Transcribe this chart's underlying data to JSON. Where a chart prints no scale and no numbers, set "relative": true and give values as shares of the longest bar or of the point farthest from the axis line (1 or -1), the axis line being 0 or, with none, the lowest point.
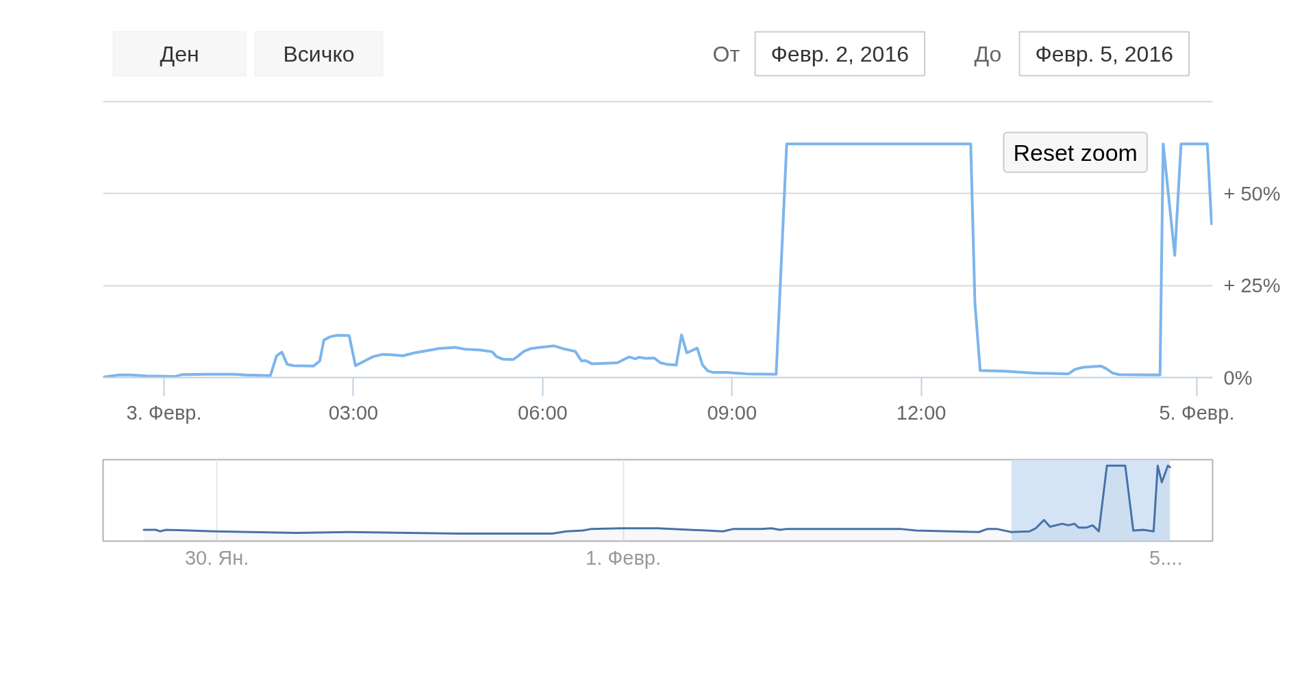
{
  "chart_data": [
    {
      "type": "line",
      "annotations": [
        "Ден",
        "Всичко",
        "От",
        "Февр. 2, 2016",
        "До",
        "Февр. 5, 2016",
        "Reset zoom"
      ],
      "x": [
        "2016-02-02T23:02",
        "2016-02-02T23:17",
        "2016-02-02T23:29",
        "2016-02-02T23:43",
        "2016-02-03T00:11",
        "2016-02-03T00:17",
        "2016-02-03T00:41",
        "2016-02-03T01:06",
        "2016-02-03T01:18",
        "2016-02-03T01:41",
        "2016-02-03T01:47",
        "2016-02-03T01:52",
        "2016-02-03T01:57",
        "2016-02-03T02:03",
        "2016-02-03T02:22",
        "2016-02-03T02:28",
        "2016-02-03T02:32",
        "2016-02-03T02:38",
        "2016-02-03T02:45",
        "2016-02-03T02:56",
        "2016-02-03T03:02",
        "2016-02-03T03:12",
        "2016-02-03T03:19",
        "2016-02-03T03:28",
        "2016-02-03T03:36",
        "2016-02-03T03:47",
        "2016-02-03T03:58",
        "2016-02-03T04:22",
        "2016-02-03T04:37",
        "2016-02-03T04:46",
        "2016-02-03T05:00",
        "2016-02-03T05:12",
        "2016-02-03T05:16",
        "2016-02-03T05:22",
        "2016-02-03T05:32",
        "2016-02-03T05:36",
        "2016-02-03T05:42",
        "2016-02-03T05:48",
        "2016-02-03T05:57",
        "2016-02-03T06:11",
        "2016-02-03T06:20",
        "2016-02-03T06:31",
        "2016-02-03T06:37",
        "2016-02-03T06:41",
        "2016-02-03T06:47",
        "2016-02-03T07:11",
        "2016-02-03T07:22",
        "2016-02-03T07:28",
        "2016-02-03T07:32",
        "2016-02-03T07:38",
        "2016-02-03T07:46",
        "2016-02-03T07:52",
        "2016-02-03T07:58",
        "2016-02-03T08:07",
        "2016-02-03T08:12",
        "2016-02-03T08:17",
        "2016-02-03T08:27",
        "2016-02-03T08:32",
        "2016-02-03T08:37",
        "2016-02-03T08:42",
        "2016-02-03T08:54",
        "2016-02-03T09:03",
        "2016-02-03T09:14",
        "2016-02-03T09:42",
        "2016-02-03T09:46",
        "2016-02-03T09:52",
        "2016-02-03T12:47",
        "2016-02-03T12:51",
        "2016-02-03T12:56",
        "2016-02-03T13:19",
        "2016-02-03T13:47",
        "2016-02-03T14:20",
        "2016-02-03T14:26",
        "2016-02-03T14:34",
        "2016-02-03T14:51",
        "2016-02-03T14:56",
        "2016-02-03T15:02",
        "2016-02-03T15:08",
        "2016-02-03T15:47",
        "2016-02-03T15:50",
        "2016-02-03T16:01",
        "2016-02-03T16:07",
        "2016-02-03T16:32",
        "2016-02-03T16:36"
      ],
      "series": [
        {
          "color": "#7cb5ec",
          "values": [
            0.1,
            0.7,
            0.7,
            0.4,
            0.3,
            0.8,
            0.9,
            0.9,
            0.7,
            0.5,
            5.9,
            6.9,
            3.6,
            3.2,
            3.1,
            4.5,
            10.2,
            11.1,
            11.5,
            11.4,
            3.2,
            4.7,
            5.7,
            6.3,
            6.2,
            5.9,
            6.7,
            7.9,
            8.2,
            7.7,
            7.5,
            7.0,
            5.7,
            5.0,
            4.9,
            5.7,
            7.1,
            7.8,
            8.2,
            8.6,
            7.8,
            7.1,
            4.5,
            4.6,
            3.7,
            4.0,
            5.6,
            5.1,
            5.5,
            5.2,
            5.3,
            4.0,
            3.6,
            3.4,
            11.6,
            6.7,
            8.0,
            3.4,
            1.8,
            1.4,
            1.4,
            1.2,
            1.0,
            0.9,
            25.6,
            63.5,
            63.5,
            20.2,
            1.9,
            1.7,
            1.2,
            1.0,
            2.2,
            2.8,
            3.1,
            2.4,
            1.2,
            0.8,
            0.7,
            63.5,
            33.2,
            63.5,
            63.5,
            41.8
          ]
        }
      ],
      "xlim": [
        "2016-02-02T23:02",
        "2016-02-03T16:37"
      ],
      "xticks": [
        {
          "value": "2016-02-03T00:00",
          "label": "3. Февр."
        },
        {
          "value": "2016-02-03T03:00",
          "label": "03:00"
        },
        {
          "value": "2016-02-03T06:00",
          "label": "06:00"
        },
        {
          "value": "2016-02-03T09:00",
          "label": "09:00"
        },
        {
          "value": "2016-02-03T12:00",
          "label": "12:00"
        },
        {
          "value": "2016-02-03T16:22",
          "label": "5. Февр."
        }
      ],
      "ylim": [
        0,
        75
      ],
      "yticks": [
        {
          "value": 0,
          "label": "0%"
        },
        {
          "value": 25,
          "label": "+ 25%"
        },
        {
          "value": 50,
          "label": "+ 50%"
        },
        {
          "value": 75,
          "label": null
        }
      ],
      "grid": "y"
    },
    {
      "type": "area",
      "relative": true,
      "x": [
        "2016-01-29T15:22",
        "2016-01-29T16:48",
        "2016-01-29T17:17",
        "2016-01-29T18:00",
        "2016-01-29T23:46",
        "2016-01-30T09:22",
        "2016-01-30T15:36",
        "2016-01-31T04:34",
        "2016-01-31T15:36",
        "2016-01-31T17:17",
        "2016-01-31T19:12",
        "2016-01-31T20:10",
        "2016-01-31T23:46",
        "2016-02-01T04:05",
        "2016-02-01T09:50",
        "2016-02-01T11:46",
        "2016-02-01T12:58",
        "2016-02-01T16:19",
        "2016-02-01T17:31",
        "2016-02-01T18:29",
        "2016-02-01T19:12",
        "2016-02-02T08:53",
        "2016-02-02T10:34",
        "2016-02-02T18:00",
        "2016-02-02T18:58",
        "2016-02-02T20:10",
        "2016-02-02T21:50",
        "2016-02-03T00:00",
        "2016-02-03T00:43",
        "2016-02-03T01:41",
        "2016-02-03T02:24",
        "2016-02-03T03:50",
        "2016-02-03T04:34",
        "2016-02-03T05:17",
        "2016-02-03T05:46",
        "2016-02-03T06:43",
        "2016-02-03T07:26",
        "2016-02-03T08:10",
        "2016-02-03T09:07",
        "2016-02-03T11:17",
        "2016-02-03T12:14",
        "2016-02-03T13:26",
        "2016-02-03T14:38",
        "2016-02-03T15:07",
        "2016-02-03T15:36",
        "2016-02-03T16:19",
        "2016-02-03T16:34"
      ],
      "series": [
        {
          "color": "#4572a7",
          "values": [
            0.15,
            0.15,
            0.13,
            0.15,
            0.13,
            0.11,
            0.12,
            0.1,
            0.1,
            0.13,
            0.14,
            0.16,
            0.17,
            0.17,
            0.14,
            0.13,
            0.16,
            0.16,
            0.17,
            0.15,
            0.16,
            0.16,
            0.14,
            0.12,
            0.16,
            0.16,
            0.12,
            0.13,
            0.17,
            0.28,
            0.19,
            0.23,
            0.21,
            0.23,
            0.18,
            0.18,
            0.21,
            0.13,
            1,
            1,
            0.14,
            0.15,
            0.13,
            1,
            0.78,
            1,
            0.98
          ]
        }
      ],
      "xlim": [
        "2016-01-29T10:34",
        "2016-02-03T21:36"
      ],
      "xticks": [
        {
          "value": "2016-01-30",
          "label": "30. Ян."
        },
        {
          "value": "2016-02-01",
          "label": "1. Февр."
        },
        {
          "value": "2016-02-03T16:05",
          "label": "5...."
        }
      ],
      "grid": "x",
      "bands": [
        {
          "axis": "x",
          "from": "2016-02-02T21:50",
          "to": "2016-02-03T16:34",
          "color": "#d5e4f5"
        }
      ]
    }
  ]
}
